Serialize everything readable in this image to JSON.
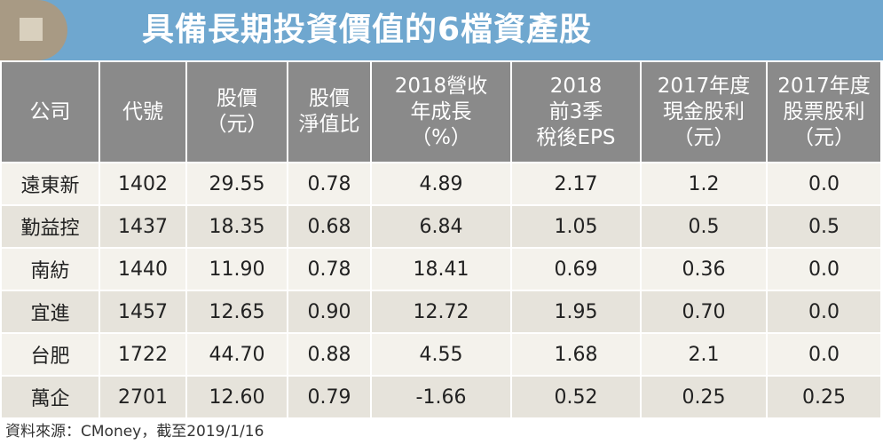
{
  "title": "具備長期投資價值的6檔資產股",
  "headers": [
    [
      "公司"
    ],
    [
      "代號"
    ],
    [
      "股價",
      "（元）"
    ],
    [
      "股價",
      "淨值比"
    ],
    [
      "2018營收",
      "年成長",
      "（%）"
    ],
    [
      "2018",
      "前3季",
      "稅後EPS"
    ],
    [
      "2017年度",
      "現金股利",
      "（元）"
    ],
    [
      "2017年度",
      "股票股利",
      "（元）"
    ]
  ],
  "rows": [
    [
      "遠東新",
      "1402",
      "29.55",
      "0.78",
      "4.89",
      "2.17",
      "1.2",
      "0.0"
    ],
    [
      "勤益控",
      "1437",
      "18.35",
      "0.68",
      "6.84",
      "1.05",
      "0.5",
      "0.5"
    ],
    [
      "南紡",
      "1440",
      "11.90",
      "0.78",
      "18.41",
      "0.69",
      "0.36",
      "0.0"
    ],
    [
      "宜進",
      "1457",
      "12.65",
      "0.90",
      "12.72",
      "1.95",
      "0.70",
      "0.0"
    ],
    [
      "台肥",
      "1722",
      "44.70",
      "0.88",
      "4.55",
      "1.68",
      "2.1",
      "0.0"
    ],
    [
      "萬企",
      "2701",
      "12.60",
      "0.79",
      "-1.66",
      "0.52",
      "0.25",
      "0.25"
    ]
  ],
  "source": "資料來源：CMoney，截至2019/1/16",
  "colors": {
    "banner": "#6fa7cf",
    "header": "#8a8a8a",
    "row_light": "#f4f2ec",
    "row_dark": "#e6e3db"
  }
}
